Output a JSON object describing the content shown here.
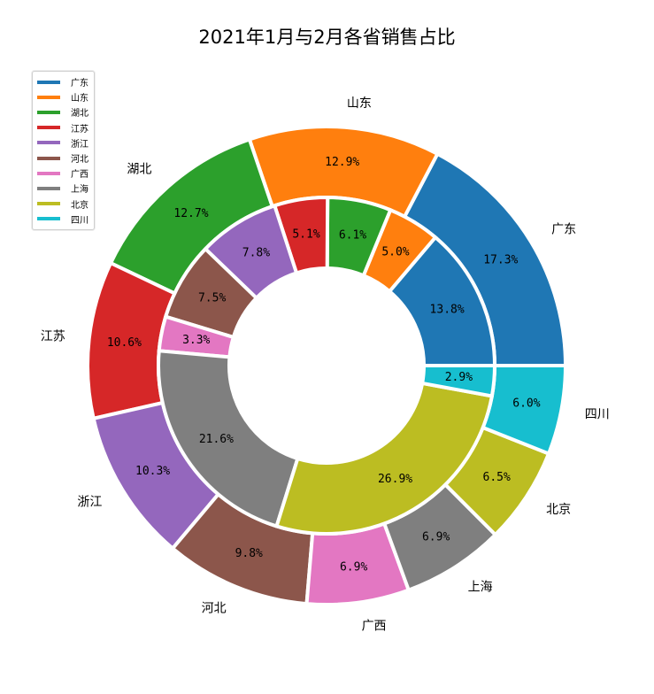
{
  "chart_data": {
    "type": "pie",
    "variant": "nested-donut",
    "title": "2021年1月与2月各省销售占比",
    "categories": [
      "广东",
      "山东",
      "湖北",
      "江苏",
      "浙江",
      "河北",
      "广西",
      "上海",
      "北京",
      "四川"
    ],
    "colors": [
      "#1f77b4",
      "#ff7f0e",
      "#2ca02c",
      "#d62728",
      "#9467bd",
      "#8c564b",
      "#e377c2",
      "#7f7f7f",
      "#bcbd22",
      "#17becf"
    ],
    "series": [
      {
        "ring": "outer",
        "values": [
          17.3,
          12.9,
          12.7,
          10.6,
          10.3,
          9.8,
          6.9,
          6.9,
          6.5,
          6.0
        ]
      },
      {
        "ring": "inner",
        "values": [
          13.8,
          5.0,
          6.1,
          5.1,
          7.8,
          7.5,
          3.3,
          21.6,
          26.9,
          2.9
        ]
      }
    ],
    "value_format": "percent-1-decimal",
    "start_angle_deg": 0,
    "direction": "counterclockwise",
    "legend": {
      "placement": "top-left",
      "entries": [
        "广东",
        "山东",
        "湖北",
        "江苏",
        "浙江",
        "河北",
        "广西",
        "上海",
        "北京",
        "四川"
      ]
    }
  }
}
